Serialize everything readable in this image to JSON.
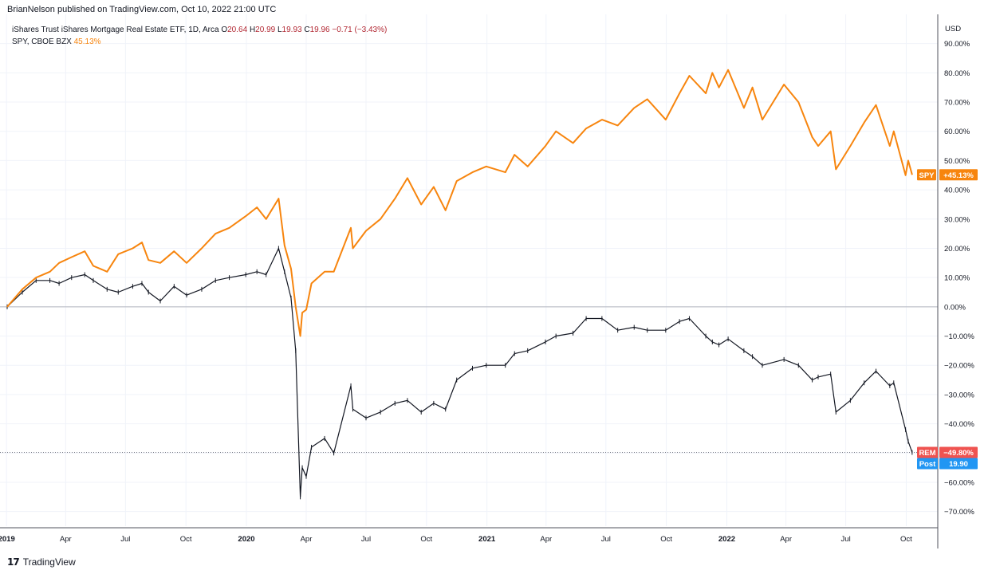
{
  "header": {
    "publisher_line": "BrianNelson published on TradingView.com, Oct 10, 2022 21:00 UTC"
  },
  "footer": {
    "logo_mark": "17",
    "logo_text": "TradingView"
  },
  "colors": {
    "spy": "#f7850e",
    "rem_up": "#131722",
    "rem_down": "#131722",
    "grid": "#f0f3fa",
    "axis": "#50535e",
    "rem_tag": "#ef5350",
    "post_tag": "#2196f3",
    "zero_line": "#b2b5be"
  },
  "chart_data": {
    "type": "line",
    "title": "",
    "currency_label": "USD",
    "legend": [
      {
        "text": "iShares Trust iShares Mortgage Real Estate ETF, 1D, Arca",
        "ohlc": [
          {
            "key": "O",
            "value": "20.64"
          },
          {
            "key": "H",
            "value": "20.99"
          },
          {
            "key": "L",
            "value": "19.93"
          },
          {
            "key": "C",
            "value": "19.96"
          }
        ],
        "change": "−0.71 (−3.43%)"
      },
      {
        "text": "SPY, CBOE BZX",
        "value": "45.13%"
      }
    ],
    "y_axis": {
      "unit": "percent",
      "ylim": [
        -75,
        100
      ],
      "ticks": [
        90,
        80,
        70,
        60,
        50,
        40,
        30,
        20,
        10,
        0,
        -10,
        -20,
        -30,
        -40,
        -50,
        -60,
        -70
      ],
      "tick_labels": [
        "90.00%",
        "80.00%",
        "70.00%",
        "60.00%",
        "50.00%",
        "40.00%",
        "30.00%",
        "20.00%",
        "10.00%",
        "0.00%",
        "−10.00%",
        "−20.00%",
        "−30.00%",
        "−40.00%",
        "−50.00%",
        "−60.00%",
        "−70.00%"
      ]
    },
    "x_axis": {
      "xlim": [
        "2019-01-02",
        "2022-11-18"
      ],
      "ticks": [
        {
          "date": "2019-01-01",
          "label": "2019",
          "bold": true
        },
        {
          "date": "2019-04-01",
          "label": "Apr",
          "bold": false
        },
        {
          "date": "2019-07-01",
          "label": "Jul",
          "bold": false
        },
        {
          "date": "2019-10-01",
          "label": "Oct",
          "bold": false
        },
        {
          "date": "2020-01-01",
          "label": "2020",
          "bold": true
        },
        {
          "date": "2020-04-01",
          "label": "Apr",
          "bold": false
        },
        {
          "date": "2020-07-01",
          "label": "Jul",
          "bold": false
        },
        {
          "date": "2020-10-01",
          "label": "Oct",
          "bold": false
        },
        {
          "date": "2021-01-01",
          "label": "2021",
          "bold": true
        },
        {
          "date": "2021-04-01",
          "label": "Apr",
          "bold": false
        },
        {
          "date": "2021-07-01",
          "label": "Jul",
          "bold": false
        },
        {
          "date": "2021-10-01",
          "label": "Oct",
          "bold": false
        },
        {
          "date": "2022-01-01",
          "label": "2022",
          "bold": true
        },
        {
          "date": "2022-04-01",
          "label": "Apr",
          "bold": false
        },
        {
          "date": "2022-07-01",
          "label": "Jul",
          "bold": false
        },
        {
          "date": "2022-10-01",
          "label": "Oct",
          "bold": false
        }
      ]
    },
    "series": [
      {
        "name": "SPY",
        "style": "line",
        "last_label": "+45.13%",
        "points": [
          [
            "2019-01-02",
            0
          ],
          [
            "2019-01-25",
            6
          ],
          [
            "2019-02-15",
            10
          ],
          [
            "2019-03-08",
            12
          ],
          [
            "2019-03-22",
            15
          ],
          [
            "2019-04-10",
            17
          ],
          [
            "2019-04-30",
            19
          ],
          [
            "2019-05-13",
            14
          ],
          [
            "2019-06-03",
            12
          ],
          [
            "2019-06-20",
            18
          ],
          [
            "2019-07-12",
            20
          ],
          [
            "2019-07-26",
            22
          ],
          [
            "2019-08-05",
            16
          ],
          [
            "2019-08-23",
            15
          ],
          [
            "2019-09-13",
            19
          ],
          [
            "2019-10-02",
            15
          ],
          [
            "2019-10-25",
            20
          ],
          [
            "2019-11-15",
            25
          ],
          [
            "2019-12-06",
            27
          ],
          [
            "2019-12-31",
            31
          ],
          [
            "2020-01-17",
            34
          ],
          [
            "2020-01-31",
            30
          ],
          [
            "2020-02-19",
            37
          ],
          [
            "2020-02-28",
            21
          ],
          [
            "2020-03-09",
            13
          ],
          [
            "2020-03-16",
            0
          ],
          [
            "2020-03-23",
            -10
          ],
          [
            "2020-03-26",
            -2
          ],
          [
            "2020-04-01",
            -1
          ],
          [
            "2020-04-09",
            8
          ],
          [
            "2020-04-29",
            12
          ],
          [
            "2020-05-13",
            12
          ],
          [
            "2020-06-08",
            27
          ],
          [
            "2020-06-11",
            20
          ],
          [
            "2020-07-01",
            26
          ],
          [
            "2020-07-23",
            30
          ],
          [
            "2020-08-14",
            37
          ],
          [
            "2020-09-02",
            44
          ],
          [
            "2020-09-23",
            35
          ],
          [
            "2020-10-12",
            41
          ],
          [
            "2020-10-30",
            33
          ],
          [
            "2020-11-16",
            43
          ],
          [
            "2020-12-10",
            46
          ],
          [
            "2020-12-31",
            48
          ],
          [
            "2021-01-29",
            46
          ],
          [
            "2021-02-12",
            52
          ],
          [
            "2021-03-04",
            48
          ],
          [
            "2021-03-31",
            55
          ],
          [
            "2021-04-16",
            60
          ],
          [
            "2021-05-12",
            56
          ],
          [
            "2021-06-01",
            61
          ],
          [
            "2021-06-25",
            64
          ],
          [
            "2021-07-19",
            62
          ],
          [
            "2021-08-13",
            68
          ],
          [
            "2021-09-02",
            71
          ],
          [
            "2021-09-30",
            64
          ],
          [
            "2021-10-21",
            73
          ],
          [
            "2021-11-05",
            79
          ],
          [
            "2021-11-30",
            73
          ],
          [
            "2021-12-10",
            80
          ],
          [
            "2021-12-20",
            75
          ],
          [
            "2022-01-03",
            81
          ],
          [
            "2022-01-27",
            68
          ],
          [
            "2022-02-09",
            75
          ],
          [
            "2022-02-24",
            64
          ],
          [
            "2022-03-29",
            76
          ],
          [
            "2022-04-20",
            70
          ],
          [
            "2022-05-11",
            58
          ],
          [
            "2022-05-20",
            55
          ],
          [
            "2022-06-08",
            60
          ],
          [
            "2022-06-16",
            47
          ],
          [
            "2022-07-08",
            55
          ],
          [
            "2022-07-29",
            63
          ],
          [
            "2022-08-16",
            69
          ],
          [
            "2022-09-06",
            55
          ],
          [
            "2022-09-12",
            60
          ],
          [
            "2022-09-30",
            45
          ],
          [
            "2022-10-04",
            50
          ],
          [
            "2022-10-10",
            45.13
          ]
        ]
      },
      {
        "name": "REM",
        "style": "bars",
        "last_label": "−49.80%",
        "post_label": "Post",
        "post_value": "19.90",
        "points": [
          [
            "2019-01-02",
            0
          ],
          [
            "2019-01-25",
            5
          ],
          [
            "2019-02-15",
            9
          ],
          [
            "2019-03-08",
            9
          ],
          [
            "2019-03-22",
            8
          ],
          [
            "2019-04-10",
            10
          ],
          [
            "2019-04-30",
            11
          ],
          [
            "2019-05-13",
            9
          ],
          [
            "2019-06-03",
            6
          ],
          [
            "2019-06-20",
            5
          ],
          [
            "2019-07-12",
            7
          ],
          [
            "2019-07-26",
            8
          ],
          [
            "2019-08-05",
            5
          ],
          [
            "2019-08-23",
            2
          ],
          [
            "2019-09-13",
            7
          ],
          [
            "2019-10-02",
            4
          ],
          [
            "2019-10-25",
            6
          ],
          [
            "2019-11-15",
            9
          ],
          [
            "2019-12-06",
            10
          ],
          [
            "2019-12-31",
            11
          ],
          [
            "2020-01-17",
            12
          ],
          [
            "2020-01-31",
            11
          ],
          [
            "2020-02-19",
            20
          ],
          [
            "2020-02-28",
            12
          ],
          [
            "2020-03-09",
            3
          ],
          [
            "2020-03-16",
            -15
          ],
          [
            "2020-03-23",
            -65
          ],
          [
            "2020-03-26",
            -55
          ],
          [
            "2020-04-01",
            -58
          ],
          [
            "2020-04-09",
            -48
          ],
          [
            "2020-04-29",
            -45
          ],
          [
            "2020-05-13",
            -50
          ],
          [
            "2020-06-08",
            -27
          ],
          [
            "2020-06-11",
            -35
          ],
          [
            "2020-07-01",
            -38
          ],
          [
            "2020-07-23",
            -36
          ],
          [
            "2020-08-14",
            -33
          ],
          [
            "2020-09-02",
            -32
          ],
          [
            "2020-09-23",
            -36
          ],
          [
            "2020-10-12",
            -33
          ],
          [
            "2020-10-30",
            -35
          ],
          [
            "2020-11-16",
            -25
          ],
          [
            "2020-12-10",
            -21
          ],
          [
            "2020-12-31",
            -20
          ],
          [
            "2021-01-29",
            -20
          ],
          [
            "2021-02-12",
            -16
          ],
          [
            "2021-03-04",
            -15
          ],
          [
            "2021-03-31",
            -12
          ],
          [
            "2021-04-16",
            -10
          ],
          [
            "2021-05-12",
            -9
          ],
          [
            "2021-06-01",
            -4
          ],
          [
            "2021-06-25",
            -4
          ],
          [
            "2021-07-19",
            -8
          ],
          [
            "2021-08-13",
            -7
          ],
          [
            "2021-09-02",
            -8
          ],
          [
            "2021-09-30",
            -8
          ],
          [
            "2021-10-21",
            -5
          ],
          [
            "2021-11-05",
            -4
          ],
          [
            "2021-11-30",
            -10
          ],
          [
            "2021-12-10",
            -12
          ],
          [
            "2021-12-20",
            -13
          ],
          [
            "2022-01-03",
            -11
          ],
          [
            "2022-01-27",
            -15
          ],
          [
            "2022-02-09",
            -17
          ],
          [
            "2022-02-24",
            -20
          ],
          [
            "2022-03-29",
            -18
          ],
          [
            "2022-04-20",
            -20
          ],
          [
            "2022-05-11",
            -25
          ],
          [
            "2022-05-20",
            -24
          ],
          [
            "2022-06-08",
            -23
          ],
          [
            "2022-06-16",
            -36
          ],
          [
            "2022-07-08",
            -32
          ],
          [
            "2022-07-29",
            -26
          ],
          [
            "2022-08-16",
            -22
          ],
          [
            "2022-09-06",
            -27
          ],
          [
            "2022-09-12",
            -26
          ],
          [
            "2022-09-30",
            -42
          ],
          [
            "2022-10-04",
            -46
          ],
          [
            "2022-10-10",
            -49.8
          ]
        ]
      }
    ]
  }
}
